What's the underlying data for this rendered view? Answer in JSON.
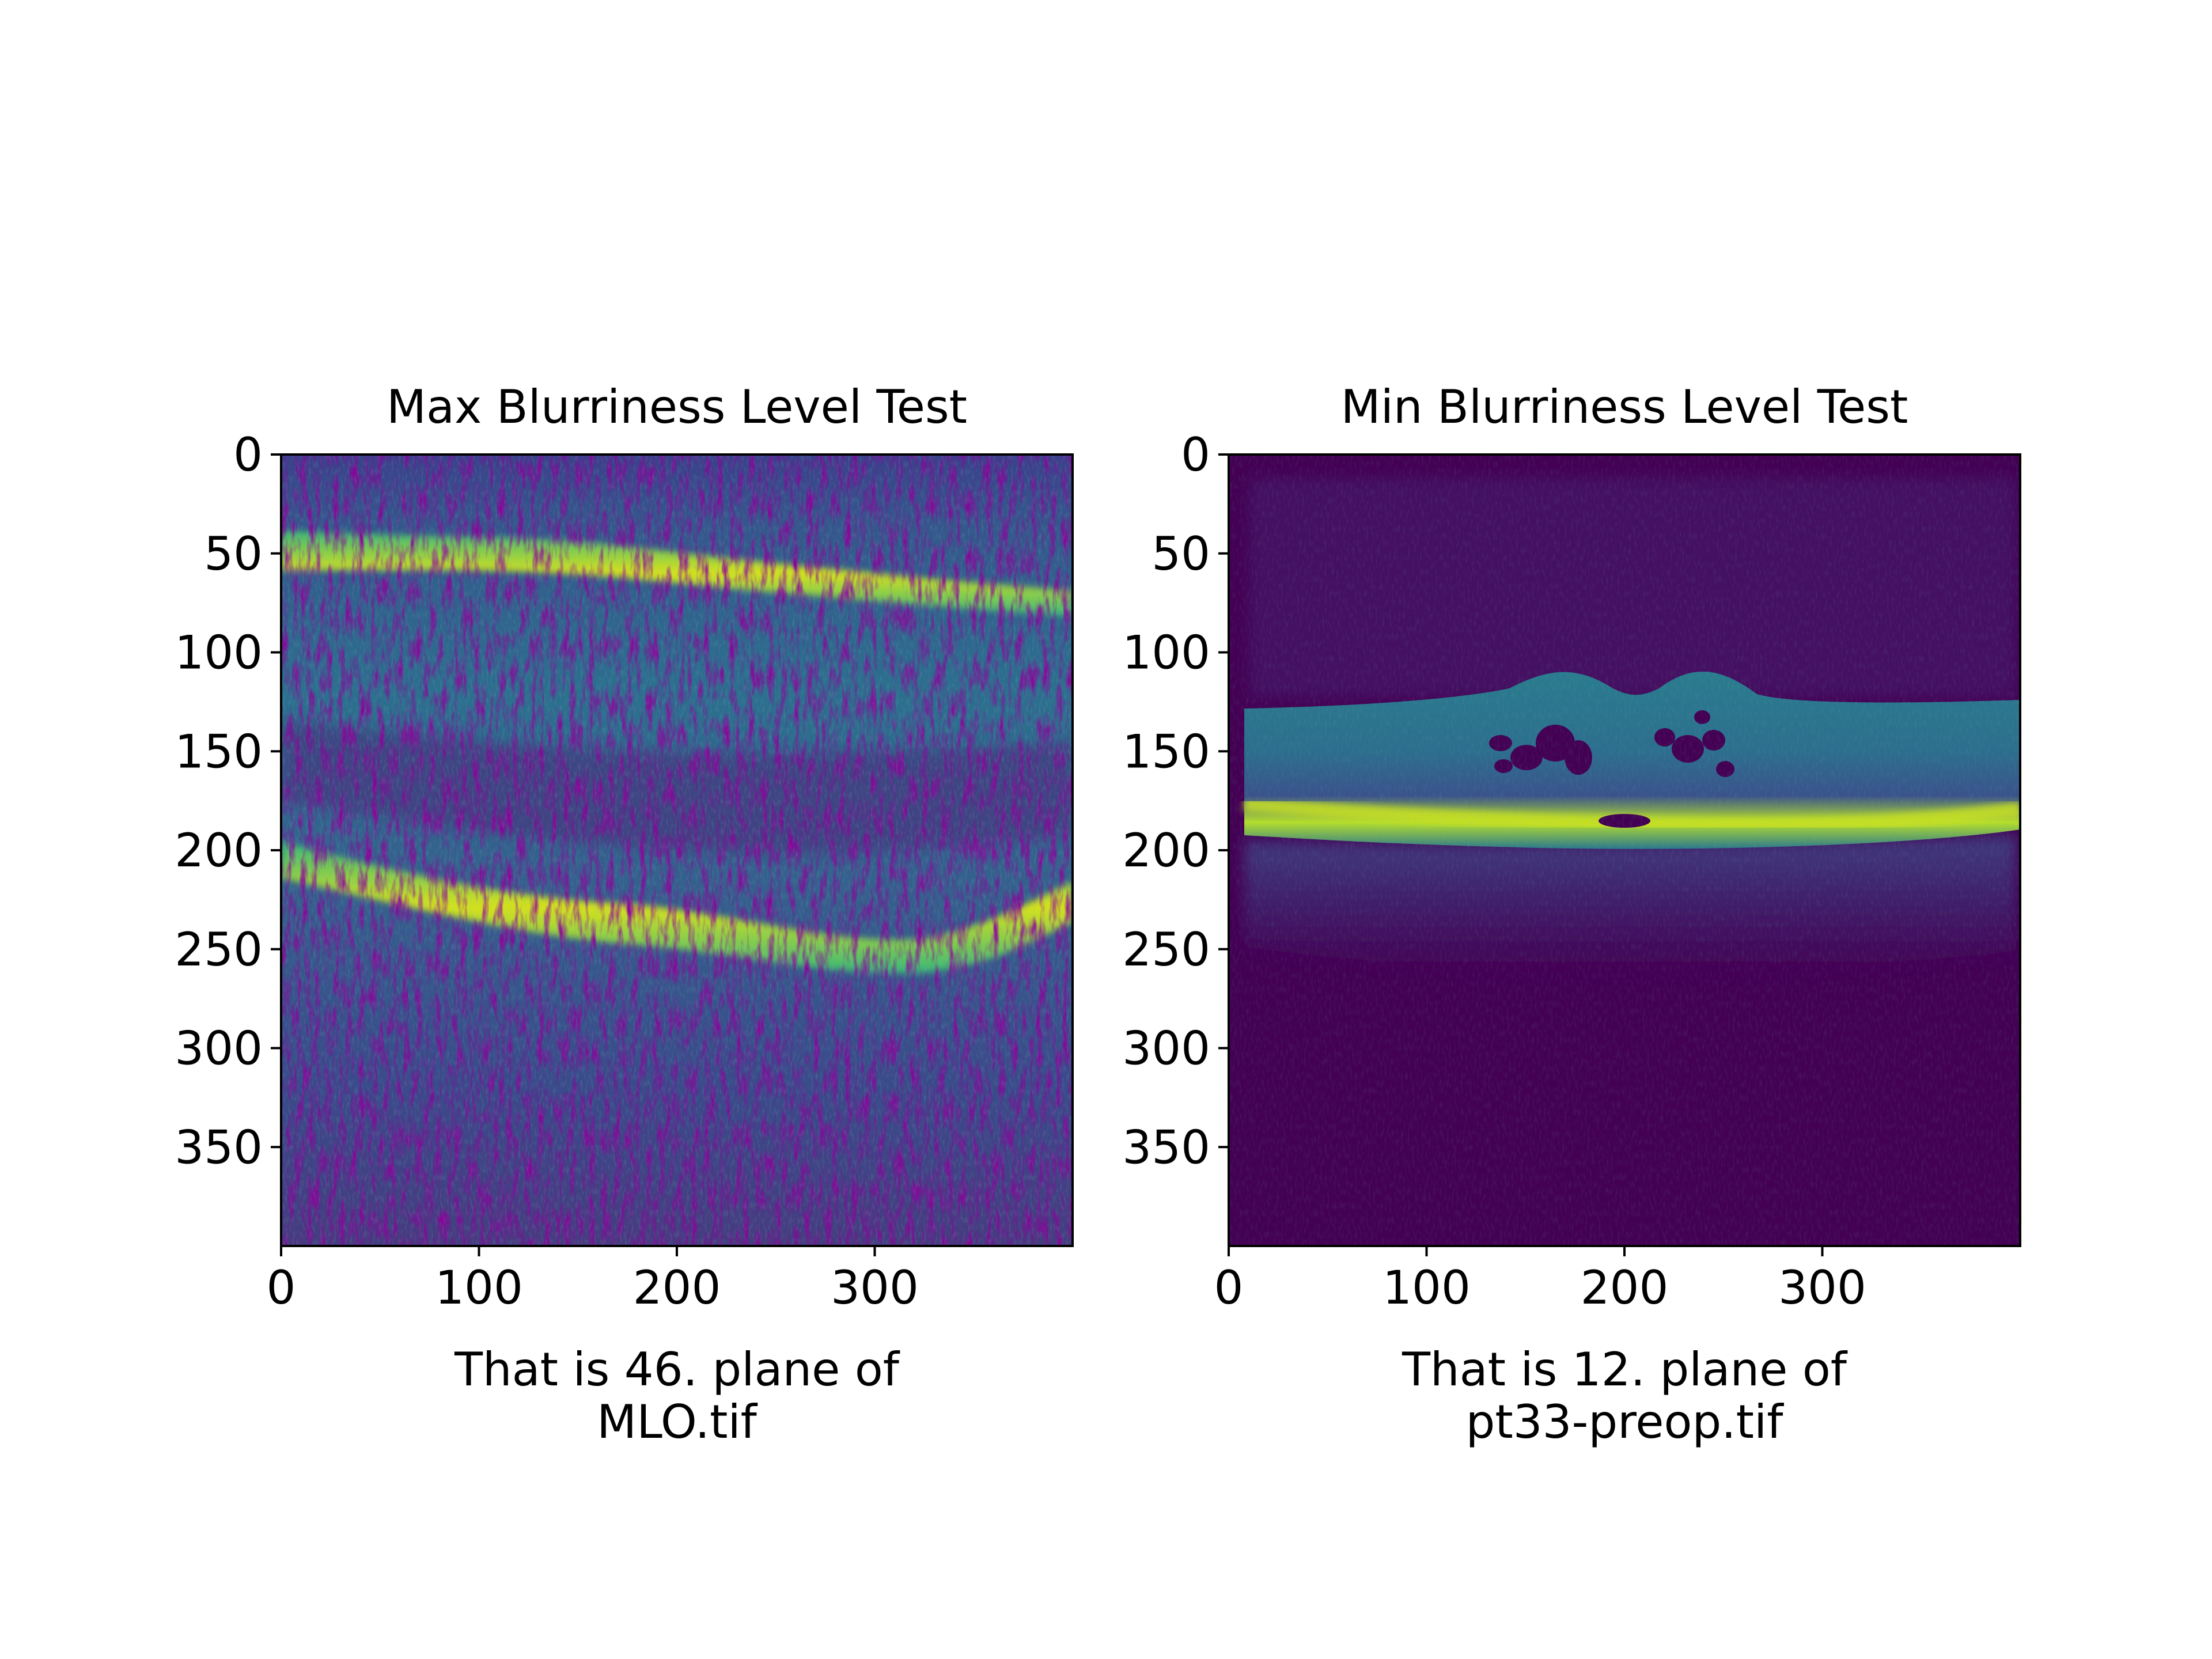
{
  "colors": {
    "viridis_dark": "#440154",
    "viridis_mid": "#21918c",
    "viridis_light": "#35b779",
    "viridis_yellow": "#fde725"
  },
  "chart_data": [
    {
      "type": "image",
      "title": "Max Blurriness Level Test",
      "xlabel_line1": "That is 46. plane of",
      "xlabel_line2": "MLO.tif",
      "xlim": [
        0,
        400
      ],
      "ylim": [
        400,
        0
      ],
      "xticks": [
        0,
        100,
        200,
        300
      ],
      "yticks": [
        0,
        50,
        100,
        150,
        200,
        250,
        300,
        350
      ],
      "colormap": "viridis"
    },
    {
      "type": "image",
      "title": "Min Blurriness Level Test",
      "xlabel_line1": "That is 12. plane of",
      "xlabel_line2": "pt33-preop.tif",
      "xlim": [
        0,
        400
      ],
      "ylim": [
        400,
        0
      ],
      "xticks": [
        0,
        100,
        200,
        300
      ],
      "yticks": [
        0,
        50,
        100,
        150,
        200,
        250,
        300,
        350
      ],
      "colormap": "viridis"
    }
  ]
}
